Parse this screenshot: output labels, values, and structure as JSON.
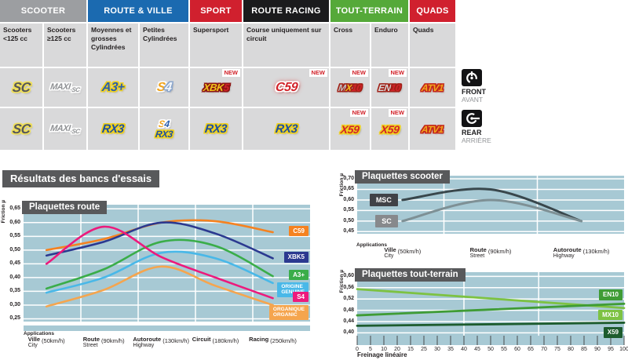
{
  "results_title": "Résultats des bancs d'essais",
  "product_table": {
    "new_label": "NEW",
    "groups": [
      {
        "label": "SCOOTER",
        "bg": "#9c9ea1",
        "fg": "#ffffff",
        "span": 2
      },
      {
        "label": "ROUTE & VILLE",
        "bg": "#1b6ab0",
        "fg": "#ffffff",
        "span": 2
      },
      {
        "label": "SPORT",
        "bg": "#d0202e",
        "fg": "#ffffff",
        "span": 1
      },
      {
        "label": "ROUTE RACING",
        "bg": "#1b1b1d",
        "fg": "#ffffff",
        "span": 1
      },
      {
        "label": "TOUT-TERRAIN",
        "bg": "#55a939",
        "fg": "#ffffff",
        "span": 2
      },
      {
        "label": "QUADS",
        "bg": "#d0202e",
        "fg": "#ffffff",
        "span": 1
      }
    ],
    "columns": [
      "Scooters <125 cc",
      "Scooters ≥125 cc",
      "Moyennes et grosses Cylindrées",
      "Petites Cylindrées",
      "Supersport",
      "Course uniquement sur circuit",
      "Cross",
      "Enduro",
      "Quads"
    ],
    "logos": {
      "sc": {
        "fs": 17,
        "segments": [
          {
            "t": "SC",
            "c": "#56575b",
            "o": "#efdf5a"
          }
        ]
      },
      "maxisc": {
        "fs": 11,
        "segments": [
          {
            "t": "MAXI",
            "c": "#909295",
            "o": "#ffffff",
            "fs": 11
          },
          {
            "t": "·SC",
            "c": "#909295",
            "o": "#ffffff",
            "fs": 8,
            "dy": 3
          }
        ]
      },
      "a3": {
        "fs": 16,
        "segments": [
          {
            "t": "A3+",
            "c": "#2a5dad",
            "o": "#f0d11e"
          }
        ]
      },
      "s4f": {
        "fs": 16,
        "segments": [
          {
            "t": "S",
            "c": "#f0a31c",
            "o": "#fdfdfd"
          },
          {
            "t": "4",
            "c": "#f4f7fb",
            "o": "#8ba6cc"
          }
        ]
      },
      "xbk5": {
        "fs": 13,
        "segments": [
          {
            "t": "XBK",
            "c": "#efc41d",
            "o": "#8c1512"
          },
          {
            "t": "5",
            "c": "#d2232a",
            "o": "#8c1512"
          }
        ]
      },
      "c59": {
        "fs": 16,
        "segments": [
          {
            "t": "C59",
            "c": "#d2232a",
            "o": "#ffffff",
            "glow": "#e23b3b"
          }
        ]
      },
      "mx10": {
        "fs": 12,
        "segments": [
          {
            "t": "M",
            "c": "#c0c2c4",
            "o": "#a02117"
          },
          {
            "t": "X",
            "c": "#f2c11d",
            "o": "#a02117"
          },
          {
            "t": "10",
            "c": "#d2232a",
            "o": "#a02117"
          }
        ]
      },
      "en10": {
        "fs": 12,
        "segments": [
          {
            "t": "EN",
            "c": "#d9dbdc",
            "o": "#a02117"
          },
          {
            "t": "10",
            "c": "#d2232a",
            "o": "#a02117"
          }
        ]
      },
      "atv1": {
        "fs": 12,
        "segments": [
          {
            "t": "ATV1",
            "c": "#f2a71d",
            "o": "#c3261a"
          }
        ]
      },
      "rx3": {
        "fs": 15,
        "segments": [
          {
            "t": "RX3",
            "c": "#1d4fa1",
            "o": "#f0d11e"
          }
        ]
      },
      "rx3s": {
        "fs": 12,
        "segments": [
          {
            "t": "RX3",
            "c": "#1d4fa1",
            "o": "#f0d11e"
          }
        ]
      },
      "s4r": {
        "fs": 12,
        "segments": [
          {
            "t": "S",
            "c": "#f0a31c",
            "o": "#ffffff"
          },
          {
            "t": "4",
            "c": "#2a5dad",
            "o": "#ffffff"
          }
        ]
      },
      "x59": {
        "fs": 14,
        "segments": [
          {
            "t": "X59",
            "c": "#d2232a",
            "o": "#f0d11e"
          }
        ]
      }
    },
    "front_row": [
      {
        "logos": [
          "sc"
        ]
      },
      {
        "logos": [
          "maxisc"
        ]
      },
      {
        "logos": [
          "a3"
        ]
      },
      {
        "logos": [
          "s4f"
        ]
      },
      {
        "logos": [
          "xbk5"
        ],
        "new": true
      },
      {
        "logos": [
          "c59"
        ],
        "new": true
      },
      {
        "logos": [
          "mx10"
        ],
        "new": true
      },
      {
        "logos": [
          "en10"
        ],
        "new": true
      },
      {
        "logos": [
          "atv1"
        ]
      }
    ],
    "rear_row": [
      {
        "logos": [
          "sc"
        ]
      },
      {
        "logos": [
          "maxisc"
        ]
      },
      {
        "logos": [
          "rx3"
        ]
      },
      {
        "logos": [
          "s4r",
          "rx3s"
        ]
      },
      {
        "logos": [
          "rx3"
        ]
      },
      {
        "logos": [
          "rx3"
        ]
      },
      {
        "logos": [
          "x59"
        ],
        "new": true
      },
      {
        "logos": [
          "x59"
        ],
        "new": true
      },
      {
        "logos": [
          "atv1"
        ]
      }
    ],
    "legend": {
      "front": {
        "label": "FRONT",
        "sub": "AVANT"
      },
      "rear": {
        "label": "REAR",
        "sub": "ARRIÈRE"
      }
    }
  },
  "chart_data": [
    {
      "id": "chart-route",
      "type": "line",
      "title": "Plaquettes route",
      "ylabel": "Friction µ",
      "xlabel": "Applications",
      "ylim": [
        0.24,
        0.665
      ],
      "grid": true,
      "plot_bg": "#a7c9d4",
      "yticks": [
        {
          "v": 0.65,
          "t": "0,65"
        },
        {
          "v": 0.6,
          "t": "0,60"
        },
        {
          "v": 0.55,
          "t": "0,55"
        },
        {
          "v": 0.5,
          "t": "0,50"
        },
        {
          "v": 0.45,
          "t": "0,45"
        },
        {
          "v": 0.4,
          "t": "0,40"
        },
        {
          "v": 0.35,
          "t": "0,35"
        },
        {
          "v": 0.3,
          "t": "0,30"
        },
        {
          "v": 0.25,
          "t": "0,25"
        }
      ],
      "categories": [
        {
          "fr": "Ville",
          "en": "City",
          "speed": "(50km/h)"
        },
        {
          "fr": "Route",
          "en": "Street",
          "speed": "(90km/h)"
        },
        {
          "fr": "Autoroute",
          "en": "Highway",
          "speed": "(130km/h)"
        },
        {
          "fr": "Circuit",
          "en": "",
          "speed": "(180km/h)"
        },
        {
          "fr": "Racing",
          "en": "",
          "speed": "(250km/h)"
        }
      ],
      "series": [
        {
          "name": "C59",
          "color": "#f58220",
          "values": [
            0.5,
            0.54,
            0.6,
            0.605,
            0.565
          ],
          "label": {
            "lines": [
              "C59"
            ],
            "bg": "#f58220",
            "dy": 0
          }
        },
        {
          "name": "XBK5",
          "color": "#2b3990",
          "values": [
            0.48,
            0.53,
            0.6,
            0.56,
            0.47
          ],
          "label": {
            "lines": [
              "XBK5"
            ],
            "bg": "#2b3990",
            "dy": 0
          }
        },
        {
          "name": "A3+",
          "color": "#3aad49",
          "values": [
            0.36,
            0.43,
            0.53,
            0.515,
            0.405
          ],
          "label": {
            "lines": [
              "A3+"
            ],
            "bg": "#3aad49",
            "dy": 0
          }
        },
        {
          "name": "ORIGINE",
          "color": "#49b8e8",
          "values": [
            0.345,
            0.4,
            0.49,
            0.47,
            0.38
          ],
          "label": {
            "lines": [
              "ORIGINE",
              "GENUINE"
            ],
            "bg": "#49b8e8",
            "dy": 7
          }
        },
        {
          "name": "S4",
          "color": "#ec1a7c",
          "values": [
            0.45,
            0.585,
            0.475,
            0.4,
            0.325
          ],
          "label": {
            "lines": [
              "S4"
            ],
            "bg": "#ec1a7c",
            "dy": 0
          }
        },
        {
          "name": "ORGANIQUE",
          "color": "#f5a54e",
          "values": [
            0.295,
            0.355,
            0.44,
            0.37,
            0.3
          ],
          "label": {
            "lines": [
              "ORGANIQUE",
              "ORGANIC"
            ],
            "bg": "#f5a54e",
            "dy": 8
          }
        }
      ]
    },
    {
      "id": "chart-scooter",
      "type": "line",
      "title": "Plaquettes scooter",
      "ylabel": "Friction µ",
      "xlabel": "Applications",
      "ylim": [
        0.44,
        0.715
      ],
      "grid": true,
      "plot_bg": "#a7c9d4",
      "yticks": [
        {
          "v": 0.7,
          "t": "0,70"
        },
        {
          "v": 0.65,
          "t": "0,65"
        },
        {
          "v": 0.6,
          "t": "0,60"
        },
        {
          "v": 0.55,
          "t": "0,55"
        },
        {
          "v": 0.5,
          "t": "0,50"
        },
        {
          "v": 0.45,
          "t": "0,45"
        }
      ],
      "categories": [
        {
          "fr": "Ville",
          "en": "City",
          "speed": "(50km/h)"
        },
        {
          "fr": "Route",
          "en": "Street",
          "speed": "(90km/h)"
        },
        {
          "fr": "Autoroute",
          "en": "Highway",
          "speed": "(130km/h)"
        }
      ],
      "series": [
        {
          "name": "MSC",
          "color": "#39474c",
          "values": [
            0.6,
            0.65,
            0.5
          ],
          "label": {
            "lines": [
              "MSC"
            ],
            "bg": "#404247",
            "pos": "start",
            "dy": 0,
            "size": "lg"
          }
        },
        {
          "name": "SC",
          "color": "#7e9095",
          "values": [
            0.5,
            0.6,
            0.5
          ],
          "label": {
            "lines": [
              "SC"
            ],
            "bg": "#87898c",
            "pos": "start",
            "dy": 0,
            "size": "lg"
          }
        }
      ]
    },
    {
      "id": "chart-tt",
      "type": "line",
      "title": "Plaquettes tout-terrain",
      "ylabel": "Friction µ",
      "xlabel": "Freinage linéaire",
      "ylim": [
        0.39,
        0.615
      ],
      "grid": true,
      "plot_bg": "#a7c9d4",
      "yticks": [
        {
          "v": 0.6,
          "t": "0,60"
        },
        {
          "v": 0.56,
          "t": "0,56"
        },
        {
          "v": 0.52,
          "t": "0,52"
        },
        {
          "v": 0.48,
          "t": "0,48"
        },
        {
          "v": 0.44,
          "t": "0,44"
        },
        {
          "v": 0.4,
          "t": "0,40"
        }
      ],
      "xticks": [
        "0",
        "5",
        "10",
        "20",
        "15",
        "25",
        "30",
        "35",
        "40",
        "45",
        "50",
        "55",
        "60",
        "65",
        "70",
        "75",
        "80",
        "85",
        "90",
        "95",
        "100"
      ],
      "series": [
        {
          "name": "MX10",
          "color": "#7dc242",
          "values": [
            0.555,
            0.488
          ],
          "label": {
            "lines": [
              "MX10"
            ],
            "bg": "#7dc242",
            "dy": 10
          }
        },
        {
          "name": "EN10",
          "color": "#3f9c35",
          "values": [
            0.462,
            0.503
          ],
          "label": {
            "lines": [
              "EN10"
            ],
            "bg": "#3f9c35",
            "dy": -10
          }
        },
        {
          "name": "X59",
          "color": "#1d5c2e",
          "values": [
            0.425,
            0.436
          ],
          "label": {
            "lines": [
              "X59"
            ],
            "bg": "#1d5c2e",
            "dy": 14
          }
        }
      ]
    }
  ]
}
